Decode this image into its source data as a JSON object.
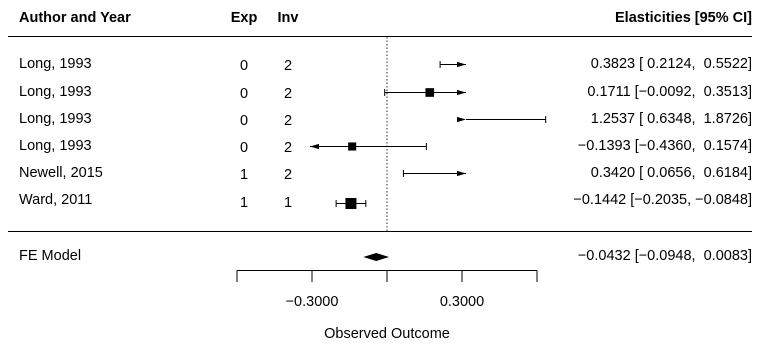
{
  "headers": {
    "author": "Author and Year",
    "exp": "Exp",
    "inv": "Inv",
    "ci": "Elasticities [95% CI]"
  },
  "studies": [
    {
      "author": "Long, 1993",
      "exp": "0",
      "inv": "2",
      "ci_text": "0.3823 [ 0.2124,  0.5522]"
    },
    {
      "author": "Long, 1993",
      "exp": "0",
      "inv": "2",
      "ci_text": "0.1711 [−0.0092,  0.3513]"
    },
    {
      "author": "Long, 1993",
      "exp": "0",
      "inv": "2",
      "ci_text": "1.2537 [ 0.6348,  1.8726]"
    },
    {
      "author": "Long, 1993",
      "exp": "0",
      "inv": "2",
      "ci_text": "−0.1393 [−0.4360,  0.1574]"
    },
    {
      "author": "Newell, 2015",
      "exp": "1",
      "inv": "2",
      "ci_text": "0.3420 [ 0.0656,  0.6184]"
    },
    {
      "author": "Ward, 2011",
      "exp": "1",
      "inv": "1",
      "ci_text": "−0.1442 [−0.2035, −0.0848]"
    }
  ],
  "summary": {
    "label": "FE Model",
    "ci_text": "−0.0432 [−0.0948,  0.0083]"
  },
  "axis": {
    "ticks": [
      "−0.3000",
      "0.3000"
    ],
    "label": "Observed Outcome"
  },
  "chart_data": {
    "type": "forest",
    "xlabel": "Observed Outcome",
    "reference_line": 0,
    "xlim": [
      -0.6,
      0.6
    ],
    "axis_ticks": [
      -0.6,
      -0.3,
      0,
      0.3,
      0.6
    ],
    "tick_labels": [
      "−0.3000",
      "0.3000"
    ],
    "studies": [
      {
        "author": "Long, 1993",
        "exp": 0,
        "inv": 2,
        "estimate": 0.3823,
        "ci_low": 0.2124,
        "ci_high": 0.5522,
        "marker_weight": 0.25
      },
      {
        "author": "Long, 1993",
        "exp": 0,
        "inv": 2,
        "estimate": 0.1711,
        "ci_low": -0.0092,
        "ci_high": 0.3513,
        "marker_weight": 0.5
      },
      {
        "author": "Long, 1993",
        "exp": 0,
        "inv": 2,
        "estimate": 1.2537,
        "ci_low": 0.6348,
        "ci_high": 1.8726,
        "marker_weight": 0.1
      },
      {
        "author": "Long, 1993",
        "exp": 0,
        "inv": 2,
        "estimate": -0.1393,
        "ci_low": -0.436,
        "ci_high": 0.1574,
        "marker_weight": 0.4
      },
      {
        "author": "Newell, 2015",
        "exp": 1,
        "inv": 2,
        "estimate": 0.342,
        "ci_low": 0.0656,
        "ci_high": 0.6184,
        "marker_weight": 0.05
      },
      {
        "author": "Ward, 2011",
        "exp": 1,
        "inv": 1,
        "estimate": -0.1442,
        "ci_low": -0.2035,
        "ci_high": -0.0848,
        "marker_weight": 1.0
      }
    ],
    "summary": {
      "label": "FE Model",
      "estimate": -0.0432,
      "ci_low": -0.0948,
      "ci_high": 0.0083
    }
  }
}
